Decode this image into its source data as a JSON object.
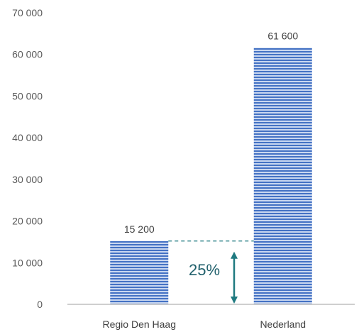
{
  "chart_data": {
    "type": "bar",
    "categories": [
      "Regio Den Haag",
      "Nederland"
    ],
    "values": [
      15200,
      61600
    ],
    "data_labels": [
      "15 200",
      "61 600"
    ],
    "ylim": [
      0,
      70000
    ],
    "y_ticks": [
      0,
      10000,
      20000,
      30000,
      40000,
      50000,
      60000,
      70000
    ],
    "y_tick_labels": [
      "0",
      "10 000",
      "20 000",
      "30 000",
      "40 000",
      "50 000",
      "60 000",
      "70 000"
    ],
    "grid": false,
    "legend": "none",
    "annotation": {
      "text": "25%",
      "from_value": 15200,
      "arrow_range": [
        0,
        15200
      ]
    }
  },
  "colors": {
    "bar_fill": "#4472c4",
    "bar_stripe_light": "#c9d7f0",
    "axis": "#bfbfbf",
    "annotation": "#1f7a80",
    "tick_text": "#595959",
    "label_text": "#404040"
  }
}
